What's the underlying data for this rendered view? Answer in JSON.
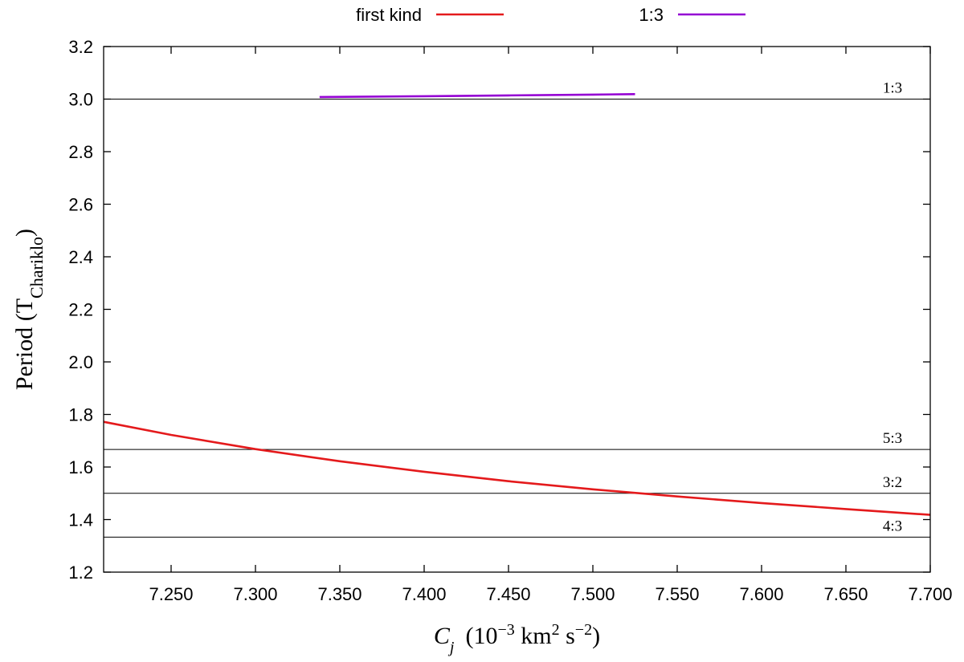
{
  "chart_data": {
    "type": "line",
    "xlabel": {
      "symbol": "C",
      "subscript": "j",
      "units_prefix": "(10",
      "units_exp1": "−3",
      "units_mid": " km",
      "units_exp2": "2",
      "units_mid2": " s",
      "units_exp3": "−2",
      "units_suffix": ")"
    },
    "ylabel": {
      "text": "Period (T",
      "subscript": "Chariklo",
      "suffix": ")"
    },
    "xlim": [
      7.21,
      7.7
    ],
    "ylim": [
      1.2,
      3.2
    ],
    "xticks": [
      7.25,
      7.3,
      7.35,
      7.4,
      7.45,
      7.5,
      7.55,
      7.6,
      7.65,
      7.7
    ],
    "xtick_labels": [
      "7.250",
      "7.300",
      "7.350",
      "7.400",
      "7.450",
      "7.500",
      "7.550",
      "7.600",
      "7.650",
      "7.700"
    ],
    "yticks": [
      1.2,
      1.4,
      1.6,
      1.8,
      2.0,
      2.2,
      2.4,
      2.6,
      2.8,
      3.0,
      3.2
    ],
    "ytick_labels": [
      "1.2",
      "1.4",
      "1.6",
      "1.8",
      "2.0",
      "2.2",
      "2.4",
      "2.6",
      "2.8",
      "3.0",
      "3.2"
    ],
    "grid": false,
    "legend_position": "top-center",
    "series": [
      {
        "name": "first kind",
        "color": "#e41a1c",
        "x": [
          7.21,
          7.25,
          7.3,
          7.35,
          7.4,
          7.45,
          7.5,
          7.55,
          7.6,
          7.65,
          7.7
        ],
        "y": [
          1.772,
          1.722,
          1.668,
          1.622,
          1.582,
          1.546,
          1.515,
          1.488,
          1.463,
          1.44,
          1.418
        ]
      },
      {
        "name": "1:3",
        "color": "#9400d3",
        "x": [
          7.338,
          7.4,
          7.45,
          7.5,
          7.525
        ],
        "y": [
          3.008,
          3.011,
          3.014,
          3.017,
          3.019
        ]
      }
    ],
    "reference_lines": [
      {
        "label": "1:3",
        "y": 3.0
      },
      {
        "label": "5:3",
        "y": 1.6667
      },
      {
        "label": "3:2",
        "y": 1.5
      },
      {
        "label": "4:3",
        "y": 1.3333
      }
    ]
  }
}
